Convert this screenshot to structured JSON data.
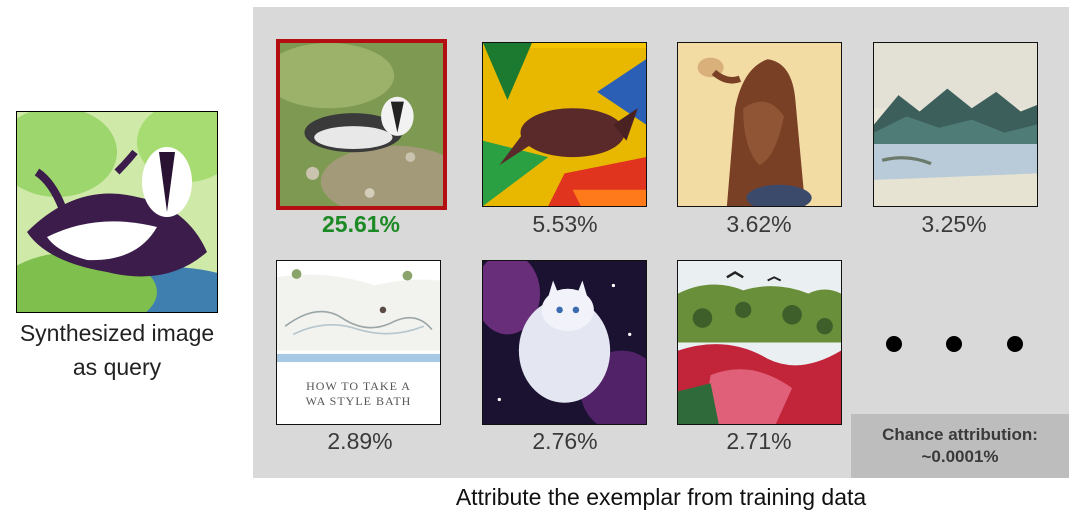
{
  "query": {
    "caption_line1": "Synthesized image",
    "caption_line2": "as query"
  },
  "results": [
    {
      "score": "25.61%",
      "top": true,
      "subject": "badger-photo"
    },
    {
      "score": "5.53%",
      "top": false,
      "subject": "fox-painting"
    },
    {
      "score": "3.62%",
      "top": false,
      "subject": "bear-illustration"
    },
    {
      "score": "3.25%",
      "top": false,
      "subject": "mountain-watercolor"
    },
    {
      "score": "2.89%",
      "top": false,
      "subject": "book-cover"
    },
    {
      "score": "2.76%",
      "top": false,
      "subject": "cat-space-art"
    },
    {
      "score": "2.71%",
      "top": false,
      "subject": "landscape-painting"
    }
  ],
  "book_cover": {
    "title_line1": "HOW TO TAKE A",
    "title_line2": "WA STYLE BATH"
  },
  "chance": {
    "line1": "Chance attribution:",
    "line2": "~0.0001%"
  },
  "footer": {
    "caption": "Attribute the exemplar from training data"
  },
  "colors": {
    "top_border": "#b30f12",
    "top_score": "#1c8a24",
    "panel_bg": "#d9d9d9",
    "chance_bg": "#bdbdbd"
  }
}
